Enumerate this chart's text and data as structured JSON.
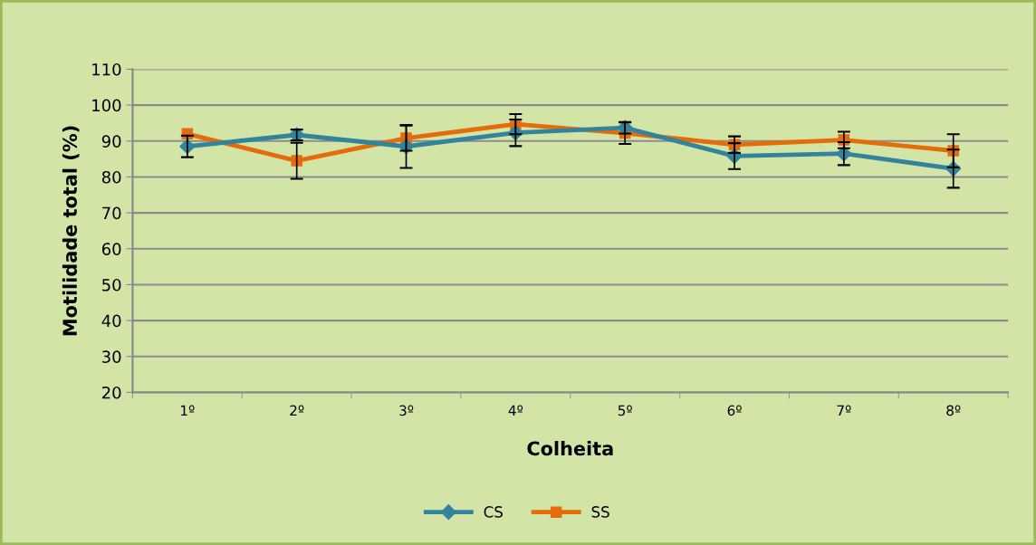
{
  "chart_data": {
    "type": "line",
    "xlabel": "Colheita",
    "ylabel": "Motilidade total (%)",
    "categories": [
      "1º",
      "2º",
      "3º",
      "4º",
      "5º",
      "6º",
      "7º",
      "8º"
    ],
    "series": [
      {
        "name": "CS",
        "color": "#31849b",
        "marker": "diamond",
        "values": [
          88.5,
          91.7,
          88.5,
          92.3,
          93.7,
          85.8,
          86.5,
          82.3
        ],
        "errors": [
          3,
          1.5,
          6,
          3.7,
          1.6,
          3.6,
          3.2,
          5.3
        ]
      },
      {
        "name": "SS",
        "color": "#e46c0a",
        "marker": "square",
        "values": [
          92.0,
          84.5,
          90.8,
          94.7,
          92.2,
          89.0,
          90.3,
          87.3
        ],
        "errors": [
          null,
          5,
          3.5,
          2.8,
          3,
          2.3,
          2.3,
          4.6
        ]
      }
    ],
    "ylim": [
      20,
      110
    ],
    "yticks": [
      20,
      30,
      40,
      50,
      60,
      70,
      80,
      90,
      100,
      110
    ],
    "grid": "y",
    "legend": "bottom",
    "line_style": "solid"
  }
}
